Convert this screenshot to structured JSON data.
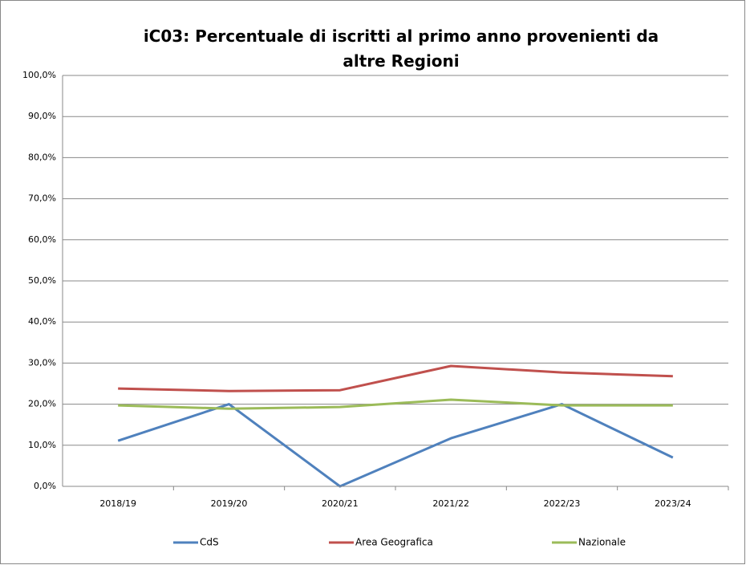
{
  "chart_data": {
    "type": "line",
    "title": "iC03: Percentuale di iscritti al primo anno provenienti da altre Regioni",
    "categories": [
      "2018/19",
      "2019/20",
      "2020/21",
      "2021/22",
      "2022/23",
      "2023/24"
    ],
    "series": [
      {
        "name": "CdS",
        "color": "#4f81bd",
        "values": [
          11.1,
          20.0,
          0.0,
          11.7,
          20.0,
          7.0
        ]
      },
      {
        "name": "Area Geografica",
        "color": "#c0504d",
        "values": [
          23.8,
          23.2,
          23.4,
          29.3,
          27.7,
          26.8
        ]
      },
      {
        "name": "Nazionale",
        "color": "#9bbb59",
        "values": [
          19.7,
          18.9,
          19.3,
          21.1,
          19.7,
          19.7
        ]
      }
    ],
    "ylim": [
      0,
      100
    ],
    "yticks": [
      {
        "value": 0,
        "label": "0,0%"
      },
      {
        "value": 10,
        "label": "10,0%"
      },
      {
        "value": 20,
        "label": "20,0%"
      },
      {
        "value": 30,
        "label": "30,0%"
      },
      {
        "value": 40,
        "label": "40,0%"
      },
      {
        "value": 50,
        "label": "50,0%"
      },
      {
        "value": 60,
        "label": "60,0%"
      },
      {
        "value": 70,
        "label": "70,0%"
      },
      {
        "value": 80,
        "label": "80,0%"
      },
      {
        "value": 90,
        "label": "90,0%"
      },
      {
        "value": 100,
        "label": "100,0%"
      }
    ],
    "grid": true,
    "legend": "bottom"
  }
}
